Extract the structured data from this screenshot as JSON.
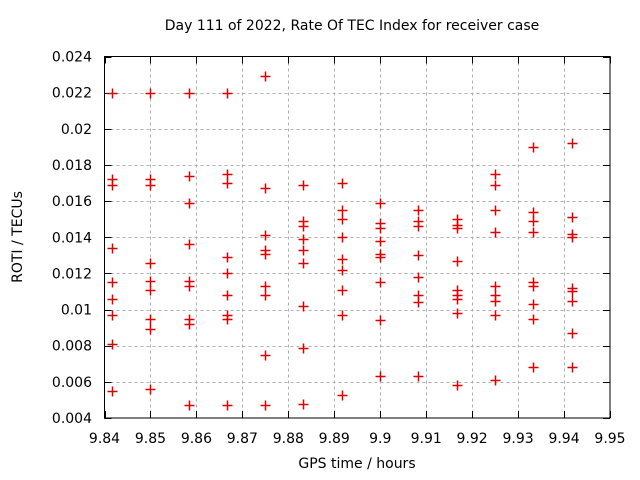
{
  "chart_data": {
    "type": "scatter",
    "title": "Day 111 of 2022, Rate Of TEC Index for receiver case",
    "xlabel": "GPS time / hours",
    "ylabel": "ROTI / TECUs",
    "xlim": [
      9.84,
      9.95
    ],
    "ylim": [
      0.004,
      0.024
    ],
    "grid": true,
    "legend_position": "none",
    "marker": "plus",
    "marker_color": "#dd0000",
    "grid_color": "#b0b0b0",
    "border_color": "#000000",
    "xticks": {
      "values": [
        9.84,
        9.85,
        9.86,
        9.87,
        9.88,
        9.89,
        9.9,
        9.91,
        9.92,
        9.93,
        9.94,
        9.95
      ],
      "labels": [
        "9.84",
        "9.85",
        "9.86",
        "9.87",
        "9.88",
        "9.89",
        "9.9",
        "9.91",
        "9.92",
        "9.93",
        "9.94",
        "9.95"
      ]
    },
    "yticks": {
      "values": [
        0.004,
        0.006,
        0.008,
        0.01,
        0.012,
        0.014,
        0.016,
        0.018,
        0.02,
        0.022,
        0.024
      ],
      "labels": [
        "0.004",
        "0.006",
        "0.008",
        "0.01",
        "0.012",
        "0.014",
        "0.016",
        "0.018",
        "0.02",
        "0.022",
        "0.024"
      ]
    },
    "points": [
      [
        9.8417,
        0.022
      ],
      [
        9.8417,
        0.0172
      ],
      [
        9.8417,
        0.0169
      ],
      [
        9.8417,
        0.0134
      ],
      [
        9.8417,
        0.0115
      ],
      [
        9.8417,
        0.0106
      ],
      [
        9.8417,
        0.0097
      ],
      [
        9.8417,
        0.0081
      ],
      [
        9.8417,
        0.0055
      ],
      [
        9.85,
        0.022
      ],
      [
        9.85,
        0.0172
      ],
      [
        9.85,
        0.0169
      ],
      [
        9.85,
        0.0126
      ],
      [
        9.85,
        0.0116
      ],
      [
        9.85,
        0.0111
      ],
      [
        9.85,
        0.0095
      ],
      [
        9.85,
        0.0089
      ],
      [
        9.85,
        0.0056
      ],
      [
        9.8583,
        0.022
      ],
      [
        9.8583,
        0.0174
      ],
      [
        9.8583,
        0.0159
      ],
      [
        9.8583,
        0.0136
      ],
      [
        9.8583,
        0.0116
      ],
      [
        9.8583,
        0.0113
      ],
      [
        9.8583,
        0.0095
      ],
      [
        9.8583,
        0.0092
      ],
      [
        9.8583,
        0.0047
      ],
      [
        9.8667,
        0.022
      ],
      [
        9.8667,
        0.0175
      ],
      [
        9.8667,
        0.017
      ],
      [
        9.8667,
        0.0129
      ],
      [
        9.8667,
        0.012
      ],
      [
        9.8667,
        0.0108
      ],
      [
        9.8667,
        0.0097
      ],
      [
        9.8667,
        0.0095
      ],
      [
        9.8667,
        0.0047
      ],
      [
        9.875,
        0.0229
      ],
      [
        9.875,
        0.0167
      ],
      [
        9.875,
        0.0141
      ],
      [
        9.875,
        0.0133
      ],
      [
        9.875,
        0.0131
      ],
      [
        9.875,
        0.0113
      ],
      [
        9.875,
        0.0108
      ],
      [
        9.875,
        0.0075
      ],
      [
        9.875,
        0.0047
      ],
      [
        9.8833,
        0.0169
      ],
      [
        9.8833,
        0.0149
      ],
      [
        9.8833,
        0.0146
      ],
      [
        9.8833,
        0.0139
      ],
      [
        9.8833,
        0.0133
      ],
      [
        9.8833,
        0.0126
      ],
      [
        9.8833,
        0.0102
      ],
      [
        9.8833,
        0.0079
      ],
      [
        9.8833,
        0.0048
      ],
      [
        9.8917,
        0.017
      ],
      [
        9.8917,
        0.0155
      ],
      [
        9.8917,
        0.015
      ],
      [
        9.8917,
        0.014
      ],
      [
        9.8917,
        0.0128
      ],
      [
        9.8917,
        0.0122
      ],
      [
        9.8917,
        0.0111
      ],
      [
        9.8917,
        0.0097
      ],
      [
        9.8917,
        0.0053
      ],
      [
        9.9,
        0.0159
      ],
      [
        9.9,
        0.0148
      ],
      [
        9.9,
        0.0145
      ],
      [
        9.9,
        0.0138
      ],
      [
        9.9,
        0.0131
      ],
      [
        9.9,
        0.0129
      ],
      [
        9.9,
        0.0115
      ],
      [
        9.9,
        0.0094
      ],
      [
        9.9,
        0.0063
      ],
      [
        9.9083,
        0.0155
      ],
      [
        9.9083,
        0.0149
      ],
      [
        9.9083,
        0.0146
      ],
      [
        9.9083,
        0.013
      ],
      [
        9.9083,
        0.0118
      ],
      [
        9.9083,
        0.0108
      ],
      [
        9.9083,
        0.0104
      ],
      [
        9.9083,
        0.0063
      ],
      [
        9.9167,
        0.015
      ],
      [
        9.9167,
        0.0147
      ],
      [
        9.9167,
        0.0145
      ],
      [
        9.9167,
        0.0127
      ],
      [
        9.9167,
        0.0111
      ],
      [
        9.9167,
        0.0108
      ],
      [
        9.9167,
        0.0106
      ],
      [
        9.9167,
        0.0098
      ],
      [
        9.9167,
        0.0058
      ],
      [
        9.925,
        0.0175
      ],
      [
        9.925,
        0.0169
      ],
      [
        9.925,
        0.0155
      ],
      [
        9.925,
        0.0143
      ],
      [
        9.925,
        0.0113
      ],
      [
        9.925,
        0.0108
      ],
      [
        9.925,
        0.0105
      ],
      [
        9.925,
        0.0097
      ],
      [
        9.925,
        0.0061
      ],
      [
        9.9333,
        0.019
      ],
      [
        9.9333,
        0.0154
      ],
      [
        9.9333,
        0.0149
      ],
      [
        9.9333,
        0.0143
      ],
      [
        9.9333,
        0.0115
      ],
      [
        9.9333,
        0.0113
      ],
      [
        9.9333,
        0.0103
      ],
      [
        9.9333,
        0.0095
      ],
      [
        9.9333,
        0.0068
      ],
      [
        9.9417,
        0.0192
      ],
      [
        9.9417,
        0.0151
      ],
      [
        9.9417,
        0.0142
      ],
      [
        9.9417,
        0.014
      ],
      [
        9.9417,
        0.0112
      ],
      [
        9.9417,
        0.011
      ],
      [
        9.9417,
        0.0105
      ],
      [
        9.9417,
        0.0087
      ],
      [
        9.9417,
        0.0068
      ]
    ]
  }
}
